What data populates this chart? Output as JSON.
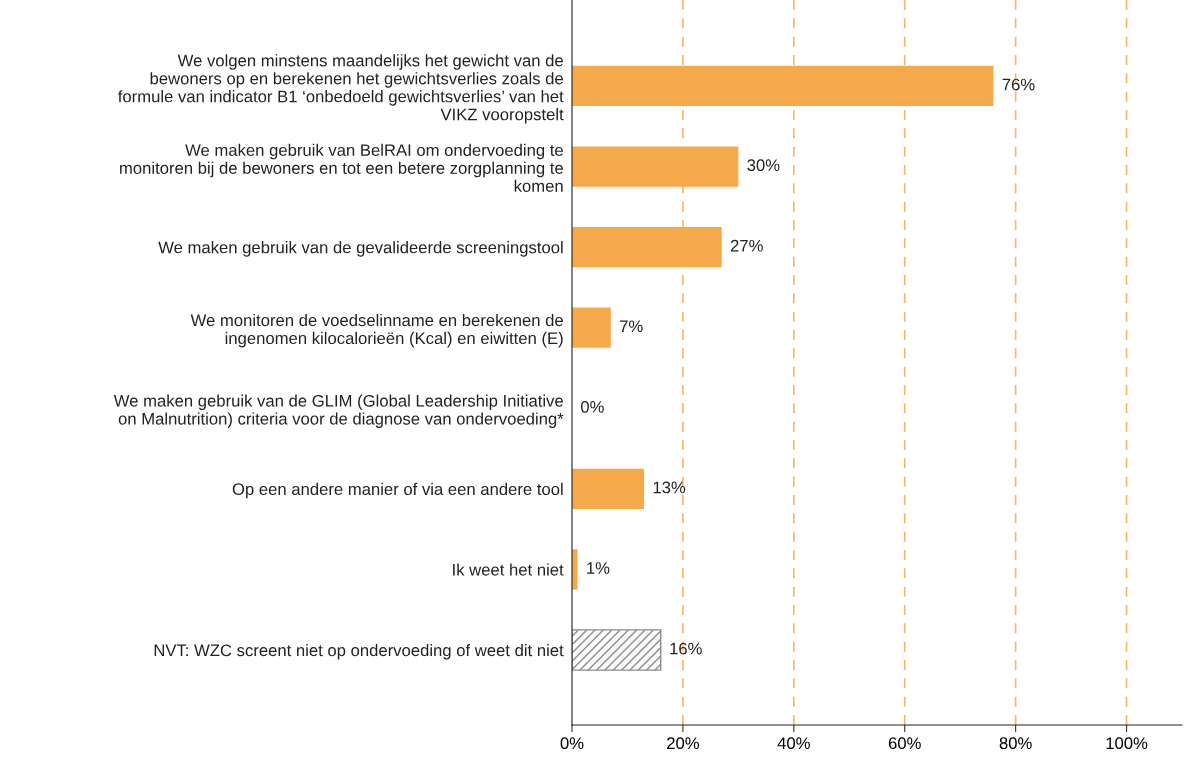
{
  "chart_data": {
    "type": "bar",
    "orientation": "horizontal",
    "categories": [
      "We volgen minstens maandelijks het gewicht van de\nbewoners op en berekenen het gewichtsverlies zoals de\nformule van indicator B1 ‘onbedoeld gewichtsverlies’ van het\nVIKZ vooropstelt",
      "We maken gebruik van BelRAI om ondervoeding te\nmonitoren bij de bewoners en tot een betere zorgplanning te\nkomen",
      "We maken gebruik van de gevalideerde screeningstool",
      "We monitoren de voedselinname en berekenen de\ningenomen kilocalorieën (Kcal) en eiwitten (E)",
      "We maken gebruik van de GLIM (Global Leadership Initiative\non Malnutrition) criteria voor de diagnose van ondervoeding*",
      "Op een andere manier of via een andere tool",
      "Ik weet het niet",
      "NVT: WZC screent niet op ondervoeding of weet dit niet"
    ],
    "values": [
      76,
      30,
      27,
      7,
      0,
      13,
      1,
      16
    ],
    "colors": [
      "#f5a94a",
      "#f5a94a",
      "#f5a94a",
      "#f5a94a",
      "#f5a94a",
      "#f5a94a",
      "#f5a94a",
      "#8c8c8c"
    ],
    "value_labels": [
      "76%",
      "30%",
      "27%",
      "7%",
      "0%",
      "13%",
      "1%",
      "16%"
    ],
    "xlim": [
      0,
      110
    ],
    "xticks": [
      {
        "value": 0,
        "label": "0%"
      },
      {
        "value": 20,
        "label": "20%"
      },
      {
        "value": 40,
        "label": "40%"
      },
      {
        "value": 60,
        "label": "60%"
      },
      {
        "value": 80,
        "label": "80%"
      },
      {
        "value": 100,
        "label": "100%"
      }
    ],
    "grid": "x"
  }
}
